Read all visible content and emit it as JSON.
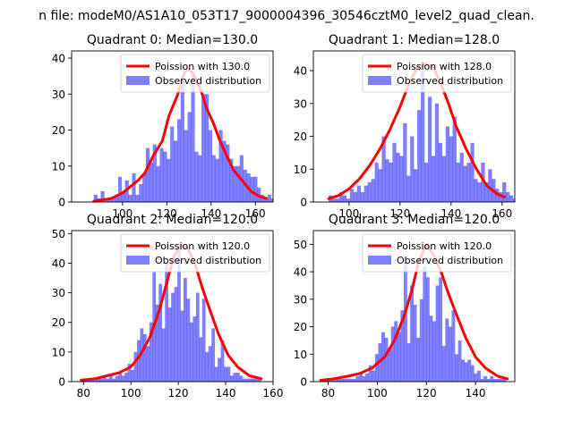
{
  "suptitle": "n file: modeM0/AS1A10_053T17_9000004396_30546cztM0_level2_quad_clean.",
  "colors": {
    "hist": "#0000ff",
    "hist_alpha": 0.5,
    "curve": "#ff0000",
    "axis": "#000000"
  },
  "chart_data": [
    {
      "type": "bar",
      "title": "Quadrant 0: Median=130.0",
      "xlim": [
        77,
        168
      ],
      "ylim": [
        0,
        42
      ],
      "xticks": [
        100,
        120,
        140,
        160
      ],
      "yticks": [
        0,
        10,
        20,
        30,
        40
      ],
      "legend": {
        "placement": "top-right",
        "entries": [
          "Poission with 130.0",
          "Observed distribution"
        ]
      },
      "bins": {
        "start": 87,
        "width": 1.57,
        "values": [
          2,
          1,
          3,
          1,
          1,
          1,
          2,
          7,
          3,
          6,
          2,
          8,
          2,
          5,
          8,
          15,
          11,
          16,
          10,
          15,
          14,
          12,
          21,
          17,
          23,
          35,
          20,
          25,
          36,
          14,
          13,
          30,
          30,
          20,
          13,
          12,
          20,
          17,
          16,
          12,
          10,
          10,
          13,
          9,
          8,
          7,
          7,
          4,
          2,
          1,
          2,
          1,
          1,
          2,
          1,
          1,
          1,
          1,
          1,
          1
        ]
      },
      "poisson": {
        "x": [
          87,
          95,
          100,
          103,
          107,
          110,
          114,
          118,
          121,
          125,
          128,
          130,
          132,
          134,
          136,
          138,
          141,
          144,
          147,
          150,
          154,
          158,
          162,
          165
        ],
        "y": [
          0.2,
          1,
          2.5,
          4,
          6,
          8,
          13,
          17,
          24,
          30,
          36,
          37,
          35.5,
          33,
          30,
          26,
          22,
          17,
          13,
          9,
          6,
          3,
          1.5,
          1
        ]
      }
    },
    {
      "type": "bar",
      "title": "Quadrant 1: Median=128.0",
      "xlim": [
        86,
        165
      ],
      "ylim": [
        0,
        46
      ],
      "xticks": [
        100,
        120,
        140,
        160
      ],
      "yticks": [
        0,
        10,
        20,
        30,
        40
      ],
      "legend": {
        "placement": "top-right",
        "entries": [
          "Poission with 128.0",
          "Observed distribution"
        ]
      },
      "bins": {
        "start": 92,
        "width": 1.39,
        "values": [
          2,
          1,
          1,
          3,
          2,
          1,
          4,
          3,
          5,
          3,
          5,
          6,
          7,
          12,
          10,
          20,
          13,
          12,
          18,
          15,
          14,
          24,
          8,
          20,
          10,
          28,
          40,
          12,
          32,
          14,
          30,
          18,
          14,
          23,
          20,
          26,
          12,
          15,
          11,
          12,
          18,
          7,
          6,
          12,
          6,
          10,
          7,
          4,
          3,
          6,
          3,
          2,
          1,
          2,
          1,
          2,
          1
        ]
      },
      "poisson": {
        "x": [
          92,
          96,
          100,
          104,
          108,
          112,
          116,
          120,
          124,
          127,
          130,
          133,
          136,
          139,
          142,
          146,
          150,
          154,
          158,
          161
        ],
        "y": [
          1,
          2,
          4,
          7,
          11,
          16,
          22,
          29,
          37,
          41,
          42,
          41,
          36,
          30,
          23,
          16,
          10,
          5,
          2.5,
          1.5
        ]
      }
    },
    {
      "type": "bar",
      "title": "Quadrant 2: Median=120.0",
      "xlim": [
        75,
        160
      ],
      "ylim": [
        0,
        51
      ],
      "xticks": [
        80,
        100,
        120,
        140,
        160
      ],
      "yticks": [
        0,
        10,
        20,
        30,
        40,
        50
      ],
      "legend": {
        "placement": "top-right",
        "entries": [
          "Poission with 120.0",
          "Observed distribution"
        ]
      },
      "bins": {
        "start": 79,
        "width": 1.31,
        "values": [
          1,
          1,
          1,
          1,
          1,
          1,
          1,
          2,
          1,
          2,
          1,
          2,
          3,
          2,
          3,
          6,
          4,
          10,
          14,
          18,
          16,
          12,
          20,
          37,
          26,
          33,
          18,
          40,
          25,
          30,
          32,
          45,
          24,
          35,
          28,
          20,
          22,
          30,
          15,
          28,
          10,
          12,
          18,
          5,
          8,
          14,
          5,
          5,
          2,
          3,
          3,
          2,
          1,
          1,
          1,
          1,
          1,
          1
        ]
      },
      "poisson": {
        "x": [
          79,
          85,
          90,
          95,
          100,
          104,
          108,
          112,
          115,
          118,
          121,
          124,
          127,
          130,
          133,
          137,
          141,
          145,
          150,
          155
        ],
        "y": [
          0.5,
          1,
          2,
          3,
          5,
          9,
          15,
          24,
          33,
          42,
          46,
          45,
          40,
          32,
          25,
          16,
          9,
          5,
          2,
          1
        ]
      }
    },
    {
      "type": "bar",
      "title": "Quadrant 3: Median=120.0",
      "xlim": [
        74,
        156
      ],
      "ylim": [
        0,
        55
      ],
      "xticks": [
        80,
        100,
        120,
        140
      ],
      "yticks": [
        0,
        10,
        20,
        30,
        40,
        50
      ],
      "legend": {
        "placement": "top-right",
        "entries": [
          "Poission with 120.0",
          "Observed distribution"
        ]
      },
      "bins": {
        "start": 77,
        "width": 1.3,
        "values": [
          1,
          1,
          1,
          1,
          1,
          1,
          1,
          1,
          1,
          1,
          1,
          2,
          3,
          2,
          3,
          6,
          4,
          10,
          14,
          18,
          16,
          12,
          20,
          22,
          18,
          26,
          45,
          14,
          35,
          28,
          16,
          30,
          42,
          38,
          24,
          22,
          35,
          38,
          13,
          23,
          20,
          26,
          10,
          15,
          8,
          7,
          8,
          6,
          3,
          4,
          1,
          2,
          1,
          2,
          1,
          1,
          1,
          1
        ]
      },
      "poisson": {
        "x": [
          77,
          82,
          88,
          93,
          98,
          103,
          107,
          111,
          114,
          117,
          120,
          123,
          126,
          129,
          132,
          136,
          140,
          144,
          149,
          153
        ],
        "y": [
          0.5,
          1,
          2,
          3,
          5,
          9,
          15,
          24,
          33,
          44,
          50,
          46,
          40,
          32,
          25,
          16,
          9,
          5,
          2,
          1
        ]
      }
    }
  ]
}
